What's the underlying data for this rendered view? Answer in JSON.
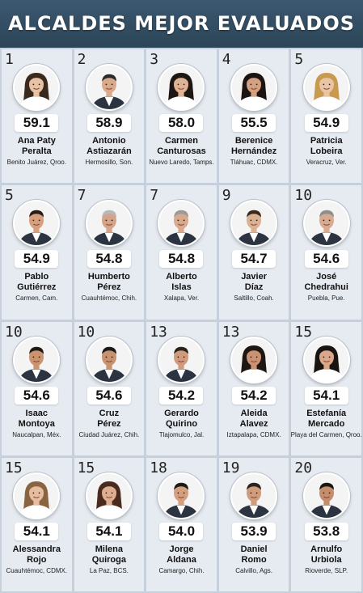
{
  "title": "ALCALDES MEJOR EVALUADOS",
  "mayors": [
    {
      "rank": "1",
      "score": "59.1",
      "first": "Ana Paty",
      "last": "Peralta",
      "place": "Benito Juárez, Qroo.",
      "gender": "f",
      "hair": "#3a2a1e",
      "skin": "#e8c2a4"
    },
    {
      "rank": "2",
      "score": "58.9",
      "first": "Antonio",
      "last": "Astiazarán",
      "place": "Hermosillo, Son.",
      "gender": "m",
      "hair": "#2a2a2a",
      "skin": "#d9a98a"
    },
    {
      "rank": "3",
      "score": "58.0",
      "first": "Carmen",
      "last": "Canturosas",
      "place": "Nuevo Laredo, Tamps.",
      "gender": "f",
      "hair": "#1e1612",
      "skin": "#e0b394"
    },
    {
      "rank": "4",
      "score": "55.5",
      "first": "Berenice",
      "last": "Hernández",
      "place": "Tláhuac, CDMX.",
      "gender": "f",
      "hair": "#1b1411",
      "skin": "#d3a080"
    },
    {
      "rank": "5",
      "score": "54.9",
      "first": "Patricia",
      "last": "Lobeira",
      "place": "Veracruz, Ver.",
      "gender": "f",
      "hair": "#c89a4f",
      "skin": "#eac4a6"
    },
    {
      "rank": "5",
      "score": "54.9",
      "first": "Pablo",
      "last": "Gutiérrez",
      "place": "Carmen, Cam.",
      "gender": "m",
      "hair": "#2a1c14",
      "skin": "#d6a07e"
    },
    {
      "rank": "7",
      "score": "54.8",
      "first": "Humberto",
      "last": "Pérez",
      "place": "Cuauhtémoc, Chih.",
      "gender": "m",
      "hair": "#b8b8b8",
      "skin": "#d5a488"
    },
    {
      "rank": "7",
      "score": "54.8",
      "first": "Alberto",
      "last": "Islas",
      "place": "Xalapa, Ver.",
      "gender": "m",
      "hair": "#9a9a9a",
      "skin": "#d8a98c"
    },
    {
      "rank": "9",
      "score": "54.7",
      "first": "Javier",
      "last": "Díaz",
      "place": "Saltillo, Coah.",
      "gender": "m",
      "hair": "#3a2a1c",
      "skin": "#dcb092"
    },
    {
      "rank": "10",
      "score": "54.6",
      "first": "José",
      "last": "Chedrahui",
      "place": "Puebla, Pue.",
      "gender": "m",
      "hair": "#8e8e8e",
      "skin": "#d8ab90"
    },
    {
      "rank": "10",
      "score": "54.6",
      "first": "Isaac",
      "last": "Montoya",
      "place": "Naucalpan, Méx.",
      "gender": "m",
      "hair": "#1e1a16",
      "skin": "#c9946e"
    },
    {
      "rank": "10",
      "score": "54.6",
      "first": "Cruz",
      "last": "Pérez",
      "place": "Ciudad Juárez, Chih.",
      "gender": "m",
      "hair": "#1a1a1a",
      "skin": "#c79270"
    },
    {
      "rank": "13",
      "score": "54.2",
      "first": "Gerardo",
      "last": "Quirino",
      "place": "Tlajomulco, Jal.",
      "gender": "m",
      "hair": "#2a221c",
      "skin": "#d09a7c"
    },
    {
      "rank": "13",
      "score": "54.2",
      "first": "Aleida",
      "last": "Alavez",
      "place": "Iztapalapa, CDMX.",
      "gender": "f",
      "hair": "#1d1612",
      "skin": "#c99373"
    },
    {
      "rank": "15",
      "score": "54.1",
      "first": "Estefanía",
      "last": "Mercado",
      "place": "Playa del Carmen, Qroo.",
      "gender": "f",
      "hair": "#1a1410",
      "skin": "#d9a78a"
    },
    {
      "rank": "15",
      "score": "54.1",
      "first": "Alessandra",
      "last": "Rojo",
      "place": "Cuauhtémoc, CDMX.",
      "gender": "f",
      "hair": "#8a6440",
      "skin": "#e6bda0"
    },
    {
      "rank": "15",
      "score": "54.1",
      "first": "Milena",
      "last": "Quiroga",
      "place": "La Paz, BCS.",
      "gender": "f",
      "hair": "#4a2a1c",
      "skin": "#deae90"
    },
    {
      "rank": "18",
      "score": "54.0",
      "first": "Jorge",
      "last": "Aldana",
      "place": "Camargo, Chih.",
      "gender": "m",
      "hair": "#1e1a16",
      "skin": "#d3a080"
    },
    {
      "rank": "19",
      "score": "53.9",
      "first": "Daniel",
      "last": "Romo",
      "place": "Calvillo, Ags.",
      "gender": "m",
      "hair": "#2a2420",
      "skin": "#cf9c7c"
    },
    {
      "rank": "20",
      "score": "53.8",
      "first": "Arnulfo",
      "last": "Urbiola",
      "place": "Rioverde, SLP.",
      "gender": "m",
      "hair": "#1a1614",
      "skin": "#c48e6c"
    }
  ]
}
